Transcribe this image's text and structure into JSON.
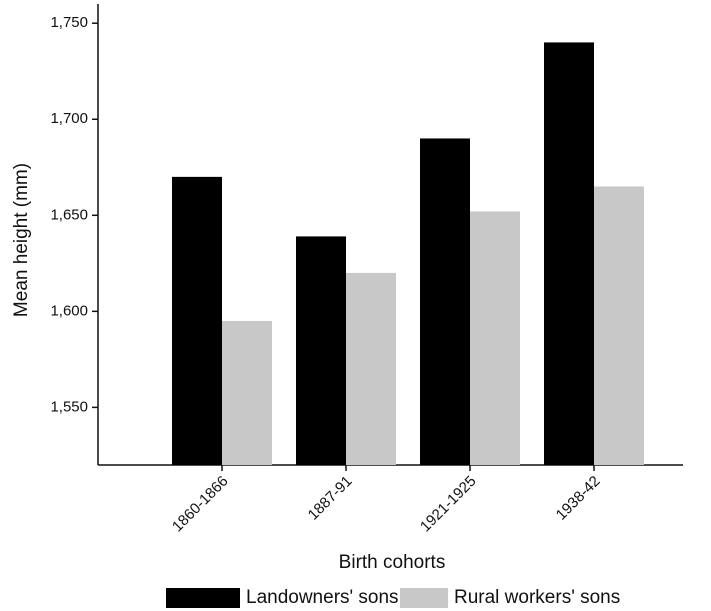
{
  "chart_data": {
    "type": "bar",
    "x_label": "Birth cohorts",
    "y_label": "Mean height (mm)",
    "categories": [
      "1860-1866",
      "1887-91",
      "1921-1925",
      "1938-42"
    ],
    "series": [
      {
        "name": "Landowners' sons",
        "color": "#000000",
        "values": [
          1670,
          1639,
          1690,
          1740
        ]
      },
      {
        "name": "Rural workers' sons",
        "color": "#c8c8c8",
        "values": [
          1595,
          1620,
          1652,
          1665
        ]
      }
    ],
    "ylim": [
      1520,
      1760
    ],
    "yticks": [
      {
        "value": 1550,
        "label": "1,550"
      },
      {
        "value": 1600,
        "label": "1,600"
      },
      {
        "value": 1650,
        "label": "1,650"
      },
      {
        "value": 1700,
        "label": "1,700"
      },
      {
        "value": 1750,
        "label": "1,750"
      }
    ],
    "legend": "bottom"
  }
}
